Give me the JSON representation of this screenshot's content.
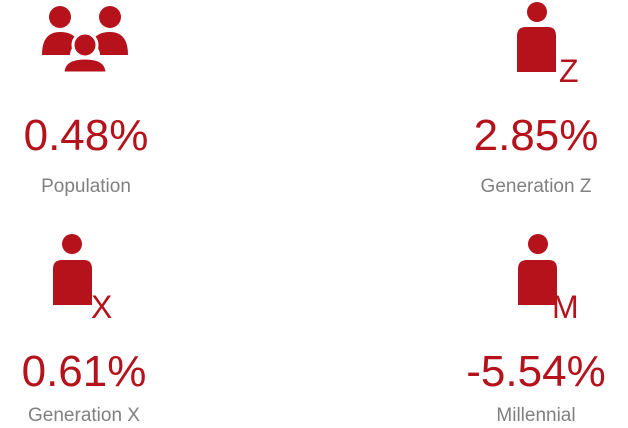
{
  "items": [
    {
      "value": "0.48%",
      "label": "Population"
    },
    {
      "value": "2.85%",
      "label": "Generation Z",
      "letter": "Z"
    },
    {
      "value": "0.61%",
      "label": "Generation X",
      "letter": "X"
    },
    {
      "value": "-5.54%",
      "label": "Millennial",
      "letter": "M"
    }
  ]
}
